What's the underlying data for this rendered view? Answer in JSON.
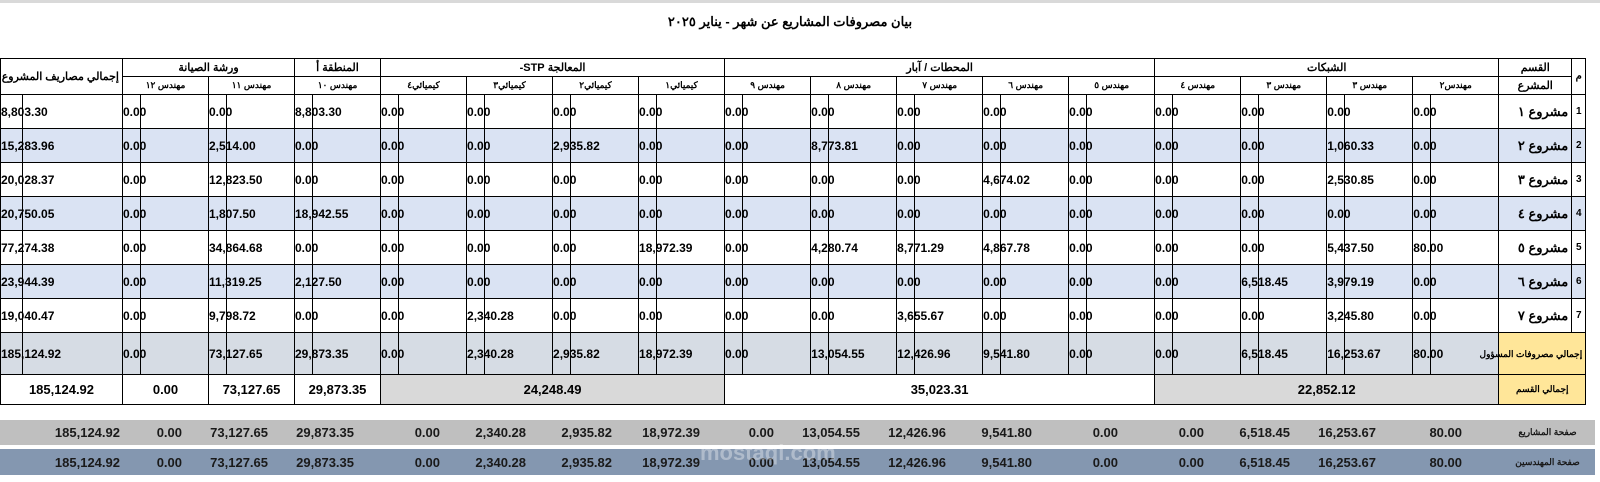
{
  "title": "بيان مصروفات المشاريع عن شهر - يناير ٢٠٢٥",
  "header": {
    "index_label": "م",
    "section_label": "القسم",
    "project_label": "المشرع",
    "groups": [
      {
        "name": "الشبكات",
        "cols": [
          "مهندس٢",
          "مهندس ٣",
          "مهندس ٣",
          "مهندس ٤"
        ]
      },
      {
        "name": "المحطات / آبار",
        "cols": [
          "مهندس ٥",
          "مهندس ٦",
          "مهندس ٧",
          "مهندس ٨",
          "مهندس ٩"
        ]
      },
      {
        "name": "المعالجة STP-",
        "cols": [
          "كيميائي١",
          "كيميائي٢",
          "كيميائي٣",
          "كيميائي٤"
        ]
      },
      {
        "name": "المنطقة أ",
        "cols": [
          "مهندس ١٠"
        ]
      },
      {
        "name": "ورشة الصيانة",
        "cols": [
          "مهندس ١١",
          "مهندس ١٢"
        ]
      }
    ],
    "total_label": "إجمالي مصاريف المشروع"
  },
  "rows": [
    {
      "idx": "1",
      "name": "مشروع ١",
      "values": [
        "0.00",
        "0.00",
        "0.00",
        "0.00",
        "0.00",
        "0.00",
        "0.00",
        "0.00",
        "0.00",
        "0.00",
        "0.00",
        "0.00",
        "0.00",
        "8,803.30",
        "0.00",
        "0.00"
      ],
      "total": "8,803.30"
    },
    {
      "idx": "2",
      "name": "مشروع ٢",
      "values": [
        "0.00",
        "1,060.33",
        "0.00",
        "0.00",
        "0.00",
        "0.00",
        "0.00",
        "8,773.81",
        "0.00",
        "0.00",
        "2,935.82",
        "0.00",
        "0.00",
        "0.00",
        "2,514.00",
        "0.00"
      ],
      "total": "15,283.96"
    },
    {
      "idx": "3",
      "name": "مشروع ٣",
      "values": [
        "0.00",
        "2,530.85",
        "0.00",
        "0.00",
        "0.00",
        "4,674.02",
        "0.00",
        "0.00",
        "0.00",
        "0.00",
        "0.00",
        "0.00",
        "0.00",
        "0.00",
        "12,823.50",
        "0.00"
      ],
      "total": "20,028.37"
    },
    {
      "idx": "4",
      "name": "مشروع ٤",
      "values": [
        "0.00",
        "0.00",
        "0.00",
        "0.00",
        "0.00",
        "0.00",
        "0.00",
        "0.00",
        "0.00",
        "0.00",
        "0.00",
        "0.00",
        "0.00",
        "18,942.55",
        "1,807.50",
        "0.00"
      ],
      "total": "20,750.05"
    },
    {
      "idx": "5",
      "name": "مشروع ٥",
      "values": [
        "80.00",
        "5,437.50",
        "0.00",
        "0.00",
        "0.00",
        "4,867.78",
        "8,771.29",
        "4,280.74",
        "0.00",
        "18,972.39",
        "0.00",
        "0.00",
        "0.00",
        "0.00",
        "34,864.68",
        "0.00"
      ],
      "total": "77,274.38"
    },
    {
      "idx": "6",
      "name": "مشروع ٦",
      "values": [
        "0.00",
        "3,979.19",
        "6,518.45",
        "0.00",
        "0.00",
        "0.00",
        "0.00",
        "0.00",
        "0.00",
        "0.00",
        "0.00",
        "0.00",
        "0.00",
        "2,127.50",
        "11,319.25",
        "0.00"
      ],
      "total": "23,944.39"
    },
    {
      "idx": "7",
      "name": "مشروع ٧",
      "values": [
        "0.00",
        "3,245.80",
        "0.00",
        "0.00",
        "0.00",
        "0.00",
        "3,655.67",
        "0.00",
        "0.00",
        "0.00",
        "0.00",
        "2,340.28",
        "0.00",
        "0.00",
        "9,798.72",
        "0.00"
      ],
      "total": "19,040.47"
    }
  ],
  "responsible_total": {
    "label": "إجمالي مصروفات المسؤول",
    "values": [
      "80.00",
      "16,253.67",
      "6,518.45",
      "0.00",
      "0.00",
      "9,541.80",
      "12,426.96",
      "13,054.55",
      "0.00",
      "18,972.39",
      "2,935.82",
      "2,340.28",
      "0.00",
      "29,873.35",
      "73,127.65",
      "0.00"
    ],
    "total": "185,124.92"
  },
  "section_total": {
    "label": "إجمالي القسم",
    "networks": "22,852.12",
    "stations": "35,023.31",
    "treatment": "24,248.49",
    "area_a": "29,873.35",
    "workshop_11": "73,127.65",
    "workshop_12": "0.00",
    "grand": "185,124.92"
  },
  "bands": [
    {
      "label": "صفحة المشاريع",
      "values": [
        "80.00",
        "16,253.67",
        "6,518.45",
        "0.00",
        "0.00",
        "9,541.80",
        "12,426.96",
        "13,054.55",
        "0.00",
        "18,972.39",
        "2,935.82",
        "2,340.28",
        "0.00",
        "29,873.35",
        "73,127.65",
        "0.00",
        "185,124.92"
      ]
    },
    {
      "label": "صفحة المهندسين",
      "values": [
        "80.00",
        "16,253.67",
        "6,518.45",
        "0.00",
        "0.00",
        "9,541.80",
        "12,426.96",
        "13,054.55",
        "0.00",
        "18,972.39",
        "2,935.82",
        "2,340.28",
        "0.00",
        "29,873.35",
        "73,127.65",
        "0.00",
        "185,124.92"
      ]
    }
  ],
  "watermark": "mostaql.com",
  "colors": {
    "alt_row": "#dae3f3",
    "total_row": "#d6dce4",
    "label_yellow": "#ffe699",
    "band_grey": "#bfbfbf",
    "band_blue": "#8497b0"
  }
}
